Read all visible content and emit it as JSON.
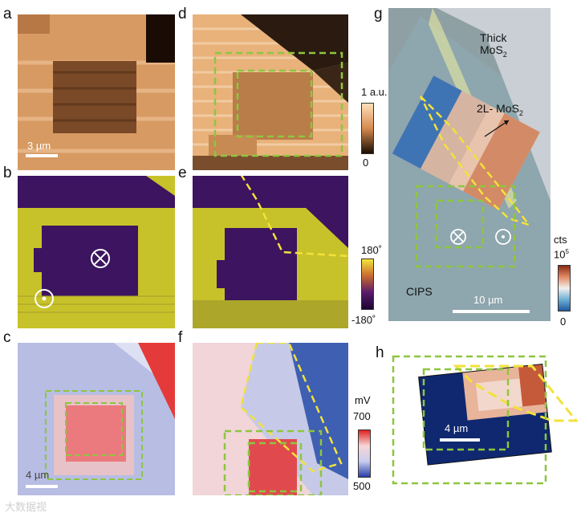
{
  "panels": {
    "a": {
      "letter": "a",
      "scale_label": "3 µm"
    },
    "b": {
      "letter": "b"
    },
    "c": {
      "letter": "c",
      "scale_label": "4 µm"
    },
    "d": {
      "letter": "d"
    },
    "e": {
      "letter": "e"
    },
    "f": {
      "letter": "f"
    },
    "g": {
      "letter": "g",
      "thick_label_line1": "Thick",
      "thick_label_line2": "MoS",
      "thick_sub": "2",
      "bilayer_label": "2L- MoS",
      "bilayer_sub": "2",
      "cips_label": "CIPS",
      "scale_label": "10 µm"
    },
    "h": {
      "letter": "h",
      "scale_label": "4 µm"
    }
  },
  "colorbars": {
    "amplitude": {
      "top": "1 a.u.",
      "bottom": "0"
    },
    "phase": {
      "top": "180˚",
      "bottom": "-180˚"
    },
    "potential": {
      "unit": "mV",
      "top": "700",
      "bottom": "500"
    },
    "counts": {
      "unit": "cts",
      "top_base": "10",
      "top_exp": "5",
      "bottom": "0"
    }
  },
  "watermark": "大数据视",
  "colors": {
    "outline_green": "#8dc63f",
    "outline_yellow": "#f2e23a",
    "phase_yellow": "#c8c22a",
    "phase_purple": "#3c1460"
  }
}
